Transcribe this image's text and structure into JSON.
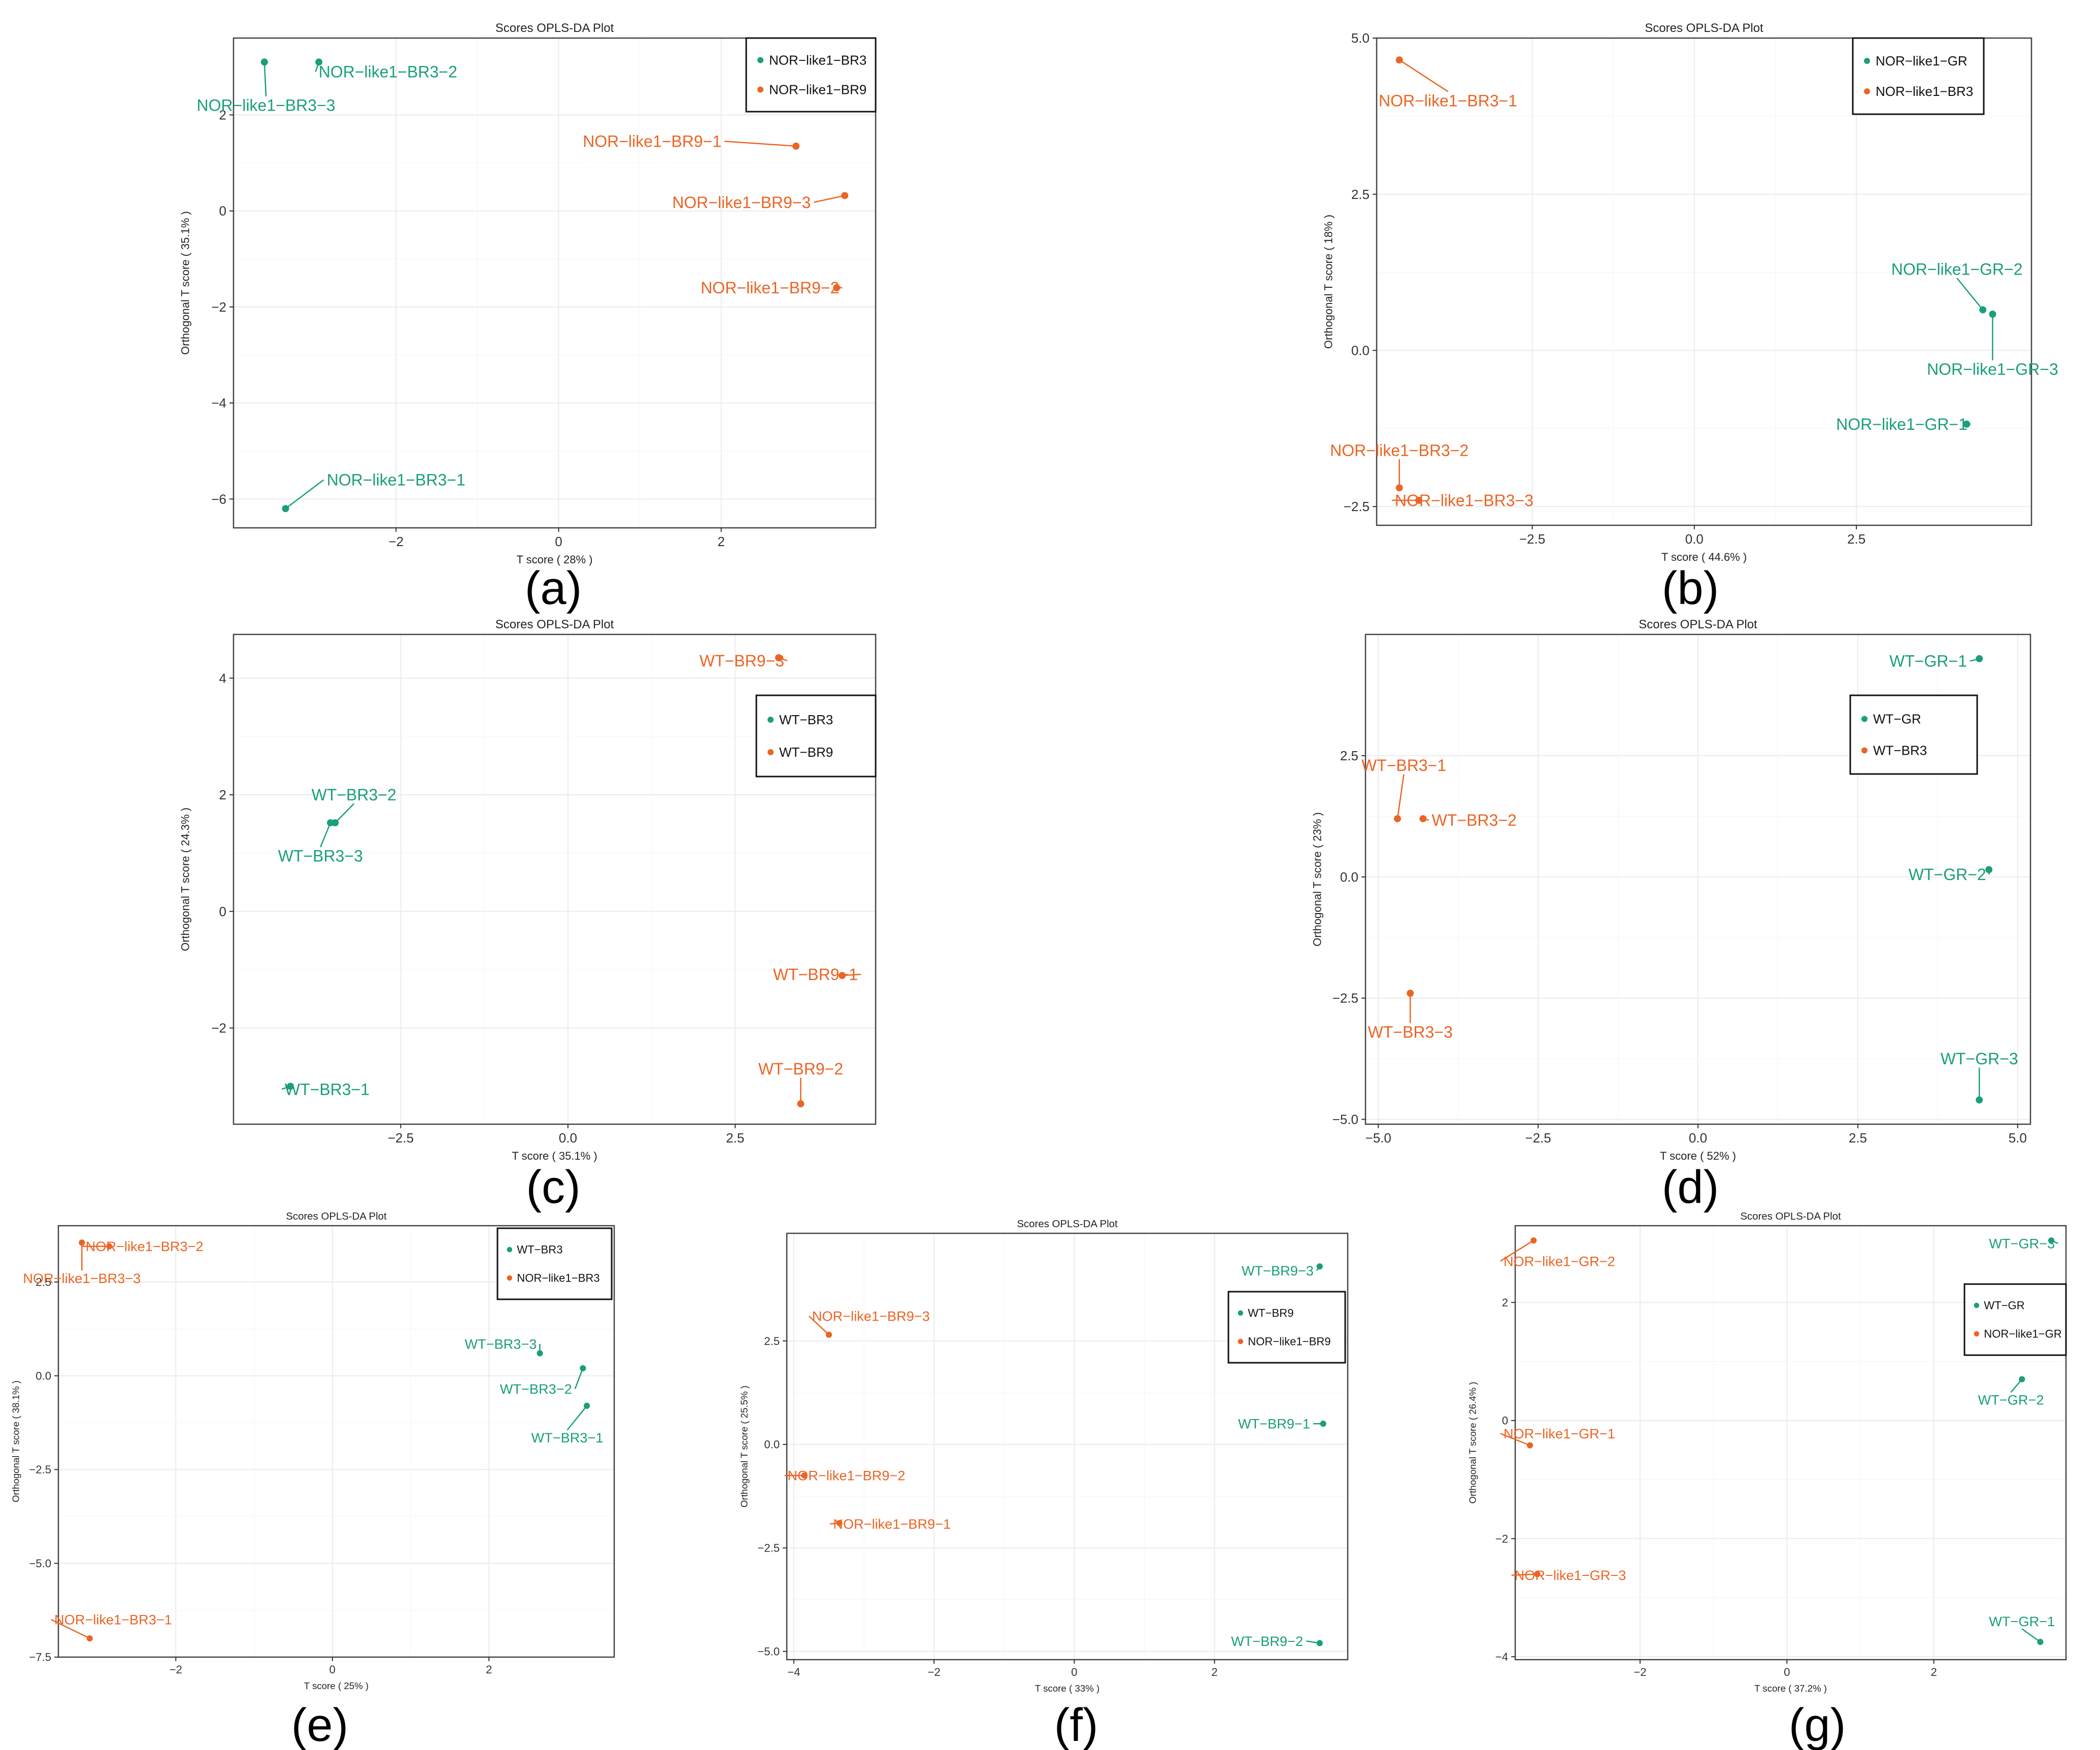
{
  "figure": {
    "colors": {
      "green": "#1a9e7b",
      "orange": "#ec6424",
      "axis": "#333333",
      "grid": "#ebebeb",
      "frame": "#444444"
    }
  },
  "chart_data": [
    {
      "panel": "(a)",
      "type": "scatter",
      "title": "Scores OPLS-DA Plot",
      "xlabel": "T score ( 28% )",
      "ylabel": "Orthogonal T score ( 35.1% )",
      "xlim": [
        -4.0,
        3.9
      ],
      "ylim": [
        -6.6,
        3.6
      ],
      "xticks": [
        {
          "v": -2,
          "t": "−2"
        },
        {
          "v": 0,
          "t": "0"
        },
        {
          "v": 2,
          "t": "2"
        }
      ],
      "yticks": [
        {
          "v": -6,
          "t": "−6"
        },
        {
          "v": -4,
          "t": "−4"
        },
        {
          "v": -2,
          "t": "−2"
        },
        {
          "v": 0,
          "t": "0"
        },
        {
          "v": 2,
          "t": "2"
        }
      ],
      "legend": [
        {
          "label": "NOR−like1−BR3",
          "color": "green"
        },
        {
          "label": "NOR−like1−BR9",
          "color": "orange"
        }
      ],
      "points": [
        {
          "label": "NOR−like1−BR3−1",
          "x": -3.36,
          "y": -6.2,
          "color": "green",
          "lx": -2.0,
          "ly": -5.6
        },
        {
          "label": "NOR−like1−BR3−2",
          "x": -2.95,
          "y": 3.1,
          "color": "green",
          "lx": -2.1,
          "ly": 2.9
        },
        {
          "label": "NOR−like1−BR3−3",
          "x": -3.62,
          "y": 3.1,
          "color": "green",
          "lx": -3.6,
          "ly": 2.2
        },
        {
          "label": "NOR−like1−BR9−1",
          "x": 2.92,
          "y": 1.35,
          "color": "orange",
          "lx": 1.15,
          "ly": 1.45
        },
        {
          "label": "NOR−like1−BR9−2",
          "x": 3.42,
          "y": -1.6,
          "color": "orange",
          "lx": 2.6,
          "ly": -1.6
        },
        {
          "label": "NOR−like1−BR9−3",
          "x": 3.52,
          "y": 0.32,
          "color": "orange",
          "lx": 2.25,
          "ly": 0.18
        }
      ]
    },
    {
      "panel": "(b)",
      "type": "scatter",
      "title": "Scores OPLS-DA Plot",
      "xlabel": "T score ( 44.6% )",
      "ylabel": "Orthogonal T score ( 18% )",
      "xlim": [
        -4.9,
        5.2
      ],
      "ylim": [
        -2.8,
        5.0
      ],
      "xticks": [
        {
          "v": -2.5,
          "t": "−2.5"
        },
        {
          "v": 0,
          "t": "0.0"
        },
        {
          "v": 2.5,
          "t": "2.5"
        }
      ],
      "yticks": [
        {
          "v": -2.5,
          "t": "−2.5"
        },
        {
          "v": 0,
          "t": "0.0"
        },
        {
          "v": 2.5,
          "t": "2.5"
        },
        {
          "v": 5,
          "t": "5.0"
        }
      ],
      "legend": [
        {
          "label": "NOR−like1−GR",
          "color": "green"
        },
        {
          "label": "NOR−like1−BR3",
          "color": "orange"
        }
      ],
      "points": [
        {
          "label": "NOR−like1−GR−1",
          "x": 4.2,
          "y": -1.18,
          "color": "green",
          "lx": 3.2,
          "ly": -1.18
        },
        {
          "label": "NOR−like1−GR−2",
          "x": 4.45,
          "y": 0.65,
          "color": "green",
          "lx": 4.05,
          "ly": 1.3
        },
        {
          "label": "NOR−like1−GR−3",
          "x": 4.6,
          "y": 0.58,
          "color": "green",
          "lx": 4.6,
          "ly": -0.3
        },
        {
          "label": "NOR−like1−BR3−1",
          "x": -4.55,
          "y": 4.65,
          "color": "orange",
          "lx": -3.8,
          "ly": 4.0
        },
        {
          "label": "NOR−like1−BR3−2",
          "x": -4.55,
          "y": -2.2,
          "color": "orange",
          "lx": -4.55,
          "ly": -1.6
        },
        {
          "label": "NOR−like1−BR3−3",
          "x": -4.25,
          "y": -2.4,
          "color": "orange",
          "lx": -3.55,
          "ly": -2.4
        }
      ]
    },
    {
      "panel": "(c)",
      "type": "scatter",
      "title": "Scores OPLS-DA Plot",
      "xlabel": "T score ( 35.1% )",
      "ylabel": "Orthogonal T score ( 24.3% )",
      "xlim": [
        -5.0,
        4.6
      ],
      "ylim": [
        -3.65,
        4.75
      ],
      "xticks": [
        {
          "v": -2.5,
          "t": "−2.5"
        },
        {
          "v": 0,
          "t": "0.0"
        },
        {
          "v": 2.5,
          "t": "2.5"
        }
      ],
      "yticks": [
        {
          "v": -2,
          "t": "−2"
        },
        {
          "v": 0,
          "t": "0"
        },
        {
          "v": 2,
          "t": "2"
        },
        {
          "v": 4,
          "t": "4"
        }
      ],
      "legend": [
        {
          "label": "WT−BR3",
          "color": "green"
        },
        {
          "label": "WT−BR9",
          "color": "orange"
        }
      ],
      "points": [
        {
          "label": "WT−BR3−1",
          "x": -4.15,
          "y": -3.0,
          "color": "green",
          "lx": -3.6,
          "ly": -3.05
        },
        {
          "label": "WT−BR3−2",
          "x": -3.48,
          "y": 1.52,
          "color": "green",
          "lx": -3.2,
          "ly": 2.0
        },
        {
          "label": "WT−BR3−3",
          "x": -3.55,
          "y": 1.52,
          "color": "green",
          "lx": -3.7,
          "ly": 0.95
        },
        {
          "label": "WT−BR9−1",
          "x": 4.1,
          "y": -1.1,
          "color": "orange",
          "lx": 3.7,
          "ly": -1.08
        },
        {
          "label": "WT−BR9−2",
          "x": 3.48,
          "y": -3.3,
          "color": "orange",
          "lx": 3.48,
          "ly": -2.7
        },
        {
          "label": "WT−BR9−3",
          "x": 3.15,
          "y": 4.35,
          "color": "orange",
          "lx": 2.6,
          "ly": 4.3
        }
      ]
    },
    {
      "panel": "(d)",
      "type": "scatter",
      "title": "Scores OPLS-DA Plot",
      "xlabel": "T score ( 52% )",
      "ylabel": "Orthogonal T score ( 23% )",
      "xlim": [
        -5.2,
        5.2
      ],
      "ylim": [
        -5.1,
        5.0
      ],
      "xticks": [
        {
          "v": -5,
          "t": "−5.0"
        },
        {
          "v": -2.5,
          "t": "−2.5"
        },
        {
          "v": 0,
          "t": "0.0"
        },
        {
          "v": 2.5,
          "t": "2.5"
        },
        {
          "v": 5,
          "t": "5.0"
        }
      ],
      "yticks": [
        {
          "v": -5,
          "t": "−5.0"
        },
        {
          "v": -2.5,
          "t": "−2.5"
        },
        {
          "v": 0,
          "t": "0.0"
        },
        {
          "v": 2.5,
          "t": "2.5"
        }
      ],
      "legend": [
        {
          "label": "WT−GR",
          "color": "green"
        },
        {
          "label": "WT−BR3",
          "color": "orange"
        }
      ],
      "points": [
        {
          "label": "WT−GR−1",
          "x": 4.4,
          "y": 4.5,
          "color": "green",
          "lx": 3.6,
          "ly": 4.45
        },
        {
          "label": "WT−GR−2",
          "x": 4.55,
          "y": 0.15,
          "color": "green",
          "lx": 3.9,
          "ly": 0.05
        },
        {
          "label": "WT−GR−3",
          "x": 4.4,
          "y": -4.6,
          "color": "green",
          "lx": 4.4,
          "ly": -3.75
        },
        {
          "label": "WT−BR3−1",
          "x": -4.7,
          "y": 1.2,
          "color": "orange",
          "lx": -4.6,
          "ly": 2.3
        },
        {
          "label": "WT−BR3−2",
          "x": -4.3,
          "y": 1.2,
          "color": "orange",
          "lx": -3.5,
          "ly": 1.17
        },
        {
          "label": "WT−BR3−3",
          "x": -4.5,
          "y": -2.4,
          "color": "orange",
          "lx": -4.5,
          "ly": -3.2
        }
      ]
    },
    {
      "panel": "(e)",
      "type": "scatter",
      "title": "Scores OPLS-DA Plot",
      "xlabel": "T score ( 25% )",
      "ylabel": "Orthogonal T score ( 38.1% )",
      "xlim": [
        -3.5,
        3.6
      ],
      "ylim": [
        -7.5,
        4.0
      ],
      "xticks": [
        {
          "v": -2,
          "t": "−2"
        },
        {
          "v": 0,
          "t": "0"
        },
        {
          "v": 2,
          "t": "2"
        }
      ],
      "yticks": [
        {
          "v": -7.5,
          "t": "−7.5"
        },
        {
          "v": -5,
          "t": "−5.0"
        },
        {
          "v": -2.5,
          "t": "−2.5"
        },
        {
          "v": 0,
          "t": "0.0"
        },
        {
          "v": 2.5,
          "t": "2.5"
        }
      ],
      "legend": [
        {
          "label": "WT−BR3",
          "color": "green"
        },
        {
          "label": "NOR−like1−BR3",
          "color": "orange"
        }
      ],
      "points": [
        {
          "label": "WT−BR3−1",
          "x": 3.25,
          "y": -0.8,
          "color": "green",
          "lx": 3.0,
          "ly": -1.65
        },
        {
          "label": "WT−BR3−2",
          "x": 3.2,
          "y": 0.2,
          "color": "green",
          "lx": 2.6,
          "ly": -0.35
        },
        {
          "label": "WT−BR3−3",
          "x": 2.65,
          "y": 0.6,
          "color": "green",
          "lx": 2.15,
          "ly": 0.85
        },
        {
          "label": "NOR−like1−BR3−1",
          "x": -3.1,
          "y": -7.0,
          "color": "orange",
          "lx": -2.8,
          "ly": -6.5
        },
        {
          "label": "NOR−like1−BR3−2",
          "x": -2.85,
          "y": 3.45,
          "color": "orange",
          "lx": -2.4,
          "ly": 3.45
        },
        {
          "label": "NOR−like1−BR3−3",
          "x": -3.2,
          "y": 3.55,
          "color": "orange",
          "lx": -3.2,
          "ly": 2.6
        }
      ]
    },
    {
      "panel": "(f)",
      "type": "scatter",
      "title": "Scores OPLS-DA Plot",
      "xlabel": "T score ( 33% )",
      "ylabel": "Orthogonal T score ( 25.5% )",
      "xlim": [
        -4.1,
        3.9
      ],
      "ylim": [
        -5.2,
        5.1
      ],
      "xticks": [
        {
          "v": -4,
          "t": "−4"
        },
        {
          "v": -2,
          "t": "−2"
        },
        {
          "v": 0,
          "t": "0"
        },
        {
          "v": 2,
          "t": "2"
        }
      ],
      "yticks": [
        {
          "v": -5,
          "t": "−5.0"
        },
        {
          "v": -2.5,
          "t": "−2.5"
        },
        {
          "v": 0,
          "t": "0.0"
        },
        {
          "v": 2.5,
          "t": "2.5"
        }
      ],
      "legend": [
        {
          "label": "WT−BR9",
          "color": "green"
        },
        {
          "label": "NOR−like1−BR9",
          "color": "orange"
        }
      ],
      "points": [
        {
          "label": "WT−BR9−1",
          "x": 3.55,
          "y": 0.5,
          "color": "green",
          "lx": 2.85,
          "ly": 0.5
        },
        {
          "label": "WT−BR9−2",
          "x": 3.5,
          "y": -4.8,
          "color": "green",
          "lx": 2.75,
          "ly": -4.75
        },
        {
          "label": "WT−BR9−3",
          "x": 3.5,
          "y": 4.3,
          "color": "green",
          "lx": 2.9,
          "ly": 4.2
        },
        {
          "label": "NOR−like1−BR9−1",
          "x": -3.35,
          "y": -1.9,
          "color": "orange",
          "lx": -2.6,
          "ly": -1.92
        },
        {
          "label": "NOR−like1−BR9−2",
          "x": -3.85,
          "y": -0.75,
          "color": "orange",
          "lx": -3.25,
          "ly": -0.75
        },
        {
          "label": "NOR−like1−BR9−3",
          "x": -3.5,
          "y": 2.65,
          "color": "orange",
          "lx": -2.9,
          "ly": 3.1
        }
      ]
    },
    {
      "panel": "(g)",
      "type": "scatter",
      "title": "Scores OPLS-DA Plot",
      "xlabel": "T score ( 37.2% )",
      "ylabel": "Orthogonal T score ( 26.4% )",
      "xlim": [
        -3.7,
        3.8
      ],
      "ylim": [
        -4.05,
        3.3
      ],
      "xticks": [
        {
          "v": -2,
          "t": "−2"
        },
        {
          "v": 0,
          "t": "0"
        },
        {
          "v": 2,
          "t": "2"
        }
      ],
      "yticks": [
        {
          "v": -4,
          "t": "−4"
        },
        {
          "v": -2,
          "t": "−2"
        },
        {
          "v": 0,
          "t": "0"
        },
        {
          "v": 2,
          "t": "2"
        }
      ],
      "legend": [
        {
          "label": "WT−GR",
          "color": "green"
        },
        {
          "label": "NOR−like1−GR",
          "color": "orange"
        }
      ],
      "points": [
        {
          "label": "WT−GR−1",
          "x": 3.45,
          "y": -3.75,
          "color": "green",
          "lx": 3.2,
          "ly": -3.4
        },
        {
          "label": "WT−GR−2",
          "x": 3.2,
          "y": 0.7,
          "color": "green",
          "lx": 3.05,
          "ly": 0.35
        },
        {
          "label": "WT−GR−3",
          "x": 3.6,
          "y": 3.05,
          "color": "green",
          "lx": 3.2,
          "ly": 3.0
        },
        {
          "label": "NOR−like1−GR−1",
          "x": -3.5,
          "y": -0.42,
          "color": "orange",
          "lx": -3.1,
          "ly": -0.22
        },
        {
          "label": "NOR−like1−GR−2",
          "x": -3.45,
          "y": 3.05,
          "color": "orange",
          "lx": -3.1,
          "ly": 2.7
        },
        {
          "label": "NOR−like1−GR−3",
          "x": -3.4,
          "y": -2.6,
          "color": "orange",
          "lx": -2.95,
          "ly": -2.62
        }
      ]
    }
  ]
}
